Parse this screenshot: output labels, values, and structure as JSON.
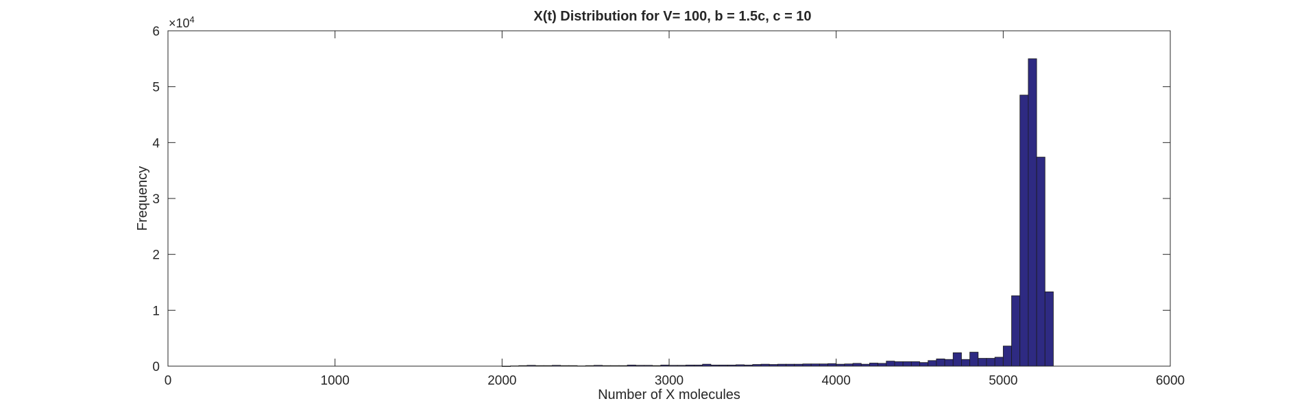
{
  "chart_data": {
    "type": "bar",
    "title": "X(t) Distribution for V= 100, b = 1.5c, c = 10",
    "xlabel": "Number of X molecules",
    "ylabel": "Frequency",
    "xlim": [
      0,
      6000
    ],
    "ylim": [
      0,
      60000
    ],
    "xticks": [
      "0",
      "1000",
      "2000",
      "3000",
      "4000",
      "5000",
      "6000"
    ],
    "yticks": [
      "0",
      "1",
      "2",
      "3",
      "4",
      "5",
      "6"
    ],
    "y_exponent_base": "×10",
    "y_exponent_power": "4",
    "bar_color": "#2e2a82",
    "bar_edge_color": "#1a1a1a",
    "grid": false,
    "bin_width": 50,
    "x": [
      2025,
      2075,
      2125,
      2175,
      2225,
      2275,
      2325,
      2375,
      2425,
      2475,
      2525,
      2575,
      2625,
      2675,
      2725,
      2775,
      2825,
      2875,
      2925,
      2975,
      3025,
      3075,
      3125,
      3175,
      3225,
      3275,
      3325,
      3375,
      3425,
      3475,
      3525,
      3575,
      3625,
      3675,
      3725,
      3775,
      3825,
      3875,
      3925,
      3975,
      4025,
      4075,
      4125,
      4175,
      4225,
      4275,
      4325,
      4375,
      4425,
      4475,
      4525,
      4575,
      4625,
      4675,
      4725,
      4775,
      4825,
      4875,
      4925,
      4975,
      5025,
      5075,
      5125,
      5175,
      5225,
      5275
    ],
    "values": [
      0,
      50,
      100,
      150,
      100,
      100,
      150,
      100,
      100,
      50,
      100,
      150,
      100,
      100,
      100,
      200,
      150,
      150,
      100,
      200,
      150,
      150,
      200,
      200,
      350,
      200,
      200,
      200,
      250,
      200,
      300,
      350,
      300,
      350,
      350,
      350,
      400,
      400,
      400,
      450,
      350,
      400,
      500,
      350,
      550,
      500,
      900,
      800,
      800,
      800,
      650,
      1000,
      1300,
      1200,
      2400,
      1200,
      2500,
      1400,
      1400,
      1600,
      3600,
      12600,
      48500,
      55000,
      37400,
      13300
    ]
  }
}
